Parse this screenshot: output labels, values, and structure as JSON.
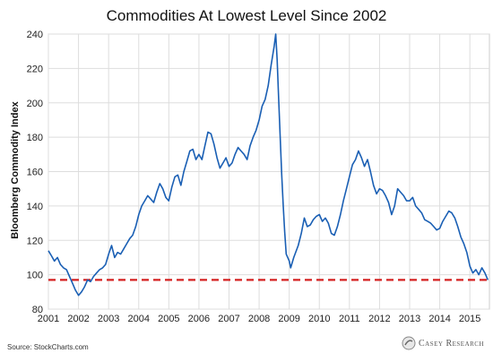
{
  "chart_data": {
    "type": "line",
    "title": "Commodities At Lowest Level Since 2002",
    "xlabel": "",
    "ylabel": "Bloomberg Commodity Index",
    "xlim": [
      2001.0,
      2015.65
    ],
    "ylim": [
      80,
      240
    ],
    "grid": true,
    "x_ticks": [
      "2001",
      "2002",
      "2003",
      "2004",
      "2005",
      "2006",
      "2007",
      "2008",
      "2009",
      "2010",
      "2011",
      "2012",
      "2013",
      "2014",
      "2015"
    ],
    "y_ticks": [
      "80",
      "100",
      "120",
      "140",
      "160",
      "180",
      "200",
      "220",
      "240"
    ],
    "line_color": "#1a5fb4",
    "reference_line": {
      "y": 97,
      "color": "#d42020",
      "style": "dashed"
    },
    "series": [
      {
        "values": [
          [
            2001.0,
            114
          ],
          [
            2001.1,
            111
          ],
          [
            2001.2,
            108
          ],
          [
            2001.3,
            110
          ],
          [
            2001.4,
            106
          ],
          [
            2001.5,
            104
          ],
          [
            2001.6,
            103
          ],
          [
            2001.7,
            99
          ],
          [
            2001.8,
            95
          ],
          [
            2001.9,
            91
          ],
          [
            2002.0,
            88
          ],
          [
            2002.1,
            90
          ],
          [
            2002.2,
            93
          ],
          [
            2002.3,
            97
          ],
          [
            2002.4,
            96
          ],
          [
            2002.5,
            99
          ],
          [
            2002.6,
            101
          ],
          [
            2002.7,
            103
          ],
          [
            2002.8,
            104
          ],
          [
            2002.9,
            106
          ],
          [
            2003.0,
            112
          ],
          [
            2003.1,
            117
          ],
          [
            2003.2,
            110
          ],
          [
            2003.3,
            113
          ],
          [
            2003.4,
            112
          ],
          [
            2003.5,
            115
          ],
          [
            2003.6,
            118
          ],
          [
            2003.7,
            121
          ],
          [
            2003.8,
            123
          ],
          [
            2003.9,
            128
          ],
          [
            2004.0,
            135
          ],
          [
            2004.1,
            140
          ],
          [
            2004.2,
            143
          ],
          [
            2004.3,
            146
          ],
          [
            2004.4,
            144
          ],
          [
            2004.5,
            142
          ],
          [
            2004.6,
            148
          ],
          [
            2004.7,
            153
          ],
          [
            2004.8,
            150
          ],
          [
            2004.9,
            145
          ],
          [
            2005.0,
            143
          ],
          [
            2005.1,
            151
          ],
          [
            2005.2,
            157
          ],
          [
            2005.3,
            158
          ],
          [
            2005.4,
            152
          ],
          [
            2005.5,
            160
          ],
          [
            2005.6,
            166
          ],
          [
            2005.7,
            172
          ],
          [
            2005.8,
            173
          ],
          [
            2005.9,
            167
          ],
          [
            2006.0,
            170
          ],
          [
            2006.1,
            167
          ],
          [
            2006.2,
            175
          ],
          [
            2006.3,
            183
          ],
          [
            2006.4,
            182
          ],
          [
            2006.5,
            176
          ],
          [
            2006.6,
            168
          ],
          [
            2006.7,
            162
          ],
          [
            2006.8,
            165
          ],
          [
            2006.9,
            168
          ],
          [
            2007.0,
            163
          ],
          [
            2007.1,
            165
          ],
          [
            2007.2,
            170
          ],
          [
            2007.3,
            174
          ],
          [
            2007.4,
            172
          ],
          [
            2007.5,
            170
          ],
          [
            2007.6,
            167
          ],
          [
            2007.7,
            175
          ],
          [
            2007.8,
            180
          ],
          [
            2007.9,
            184
          ],
          [
            2008.0,
            190
          ],
          [
            2008.1,
            198
          ],
          [
            2008.2,
            202
          ],
          [
            2008.3,
            210
          ],
          [
            2008.4,
            222
          ],
          [
            2008.5,
            233
          ],
          [
            2008.55,
            240
          ],
          [
            2008.6,
            225
          ],
          [
            2008.65,
            202
          ],
          [
            2008.7,
            180
          ],
          [
            2008.75,
            158
          ],
          [
            2008.8,
            140
          ],
          [
            2008.85,
            125
          ],
          [
            2008.9,
            112
          ],
          [
            2009.0,
            108
          ],
          [
            2009.05,
            104
          ],
          [
            2009.15,
            110
          ],
          [
            2009.3,
            117
          ],
          [
            2009.4,
            124
          ],
          [
            2009.5,
            133
          ],
          [
            2009.6,
            128
          ],
          [
            2009.7,
            129
          ],
          [
            2009.8,
            132
          ],
          [
            2009.9,
            134
          ],
          [
            2010.0,
            135
          ],
          [
            2010.1,
            131
          ],
          [
            2010.2,
            133
          ],
          [
            2010.3,
            130
          ],
          [
            2010.4,
            124
          ],
          [
            2010.5,
            123
          ],
          [
            2010.6,
            128
          ],
          [
            2010.7,
            135
          ],
          [
            2010.8,
            143
          ],
          [
            2010.9,
            150
          ],
          [
            2011.0,
            157
          ],
          [
            2011.1,
            164
          ],
          [
            2011.2,
            167
          ],
          [
            2011.3,
            172
          ],
          [
            2011.4,
            168
          ],
          [
            2011.5,
            163
          ],
          [
            2011.6,
            167
          ],
          [
            2011.7,
            160
          ],
          [
            2011.8,
            152
          ],
          [
            2011.9,
            147
          ],
          [
            2012.0,
            150
          ],
          [
            2012.1,
            149
          ],
          [
            2012.2,
            146
          ],
          [
            2012.3,
            142
          ],
          [
            2012.4,
            135
          ],
          [
            2012.5,
            140
          ],
          [
            2012.6,
            150
          ],
          [
            2012.7,
            148
          ],
          [
            2012.8,
            146
          ],
          [
            2012.9,
            143
          ],
          [
            2013.0,
            143
          ],
          [
            2013.1,
            145
          ],
          [
            2013.2,
            140
          ],
          [
            2013.3,
            138
          ],
          [
            2013.4,
            136
          ],
          [
            2013.5,
            132
          ],
          [
            2013.6,
            131
          ],
          [
            2013.7,
            130
          ],
          [
            2013.8,
            128
          ],
          [
            2013.9,
            126
          ],
          [
            2014.0,
            127
          ],
          [
            2014.1,
            131
          ],
          [
            2014.2,
            134
          ],
          [
            2014.3,
            137
          ],
          [
            2014.4,
            136
          ],
          [
            2014.5,
            133
          ],
          [
            2014.6,
            128
          ],
          [
            2014.7,
            122
          ],
          [
            2014.8,
            118
          ],
          [
            2014.9,
            113
          ],
          [
            2015.0,
            105
          ],
          [
            2015.1,
            101
          ],
          [
            2015.2,
            103
          ],
          [
            2015.3,
            100
          ],
          [
            2015.4,
            104
          ],
          [
            2015.5,
            101
          ],
          [
            2015.6,
            97
          ]
        ]
      }
    ]
  },
  "footer": {
    "source": "Source: StockCharts.com",
    "brand": "Casey Research"
  }
}
